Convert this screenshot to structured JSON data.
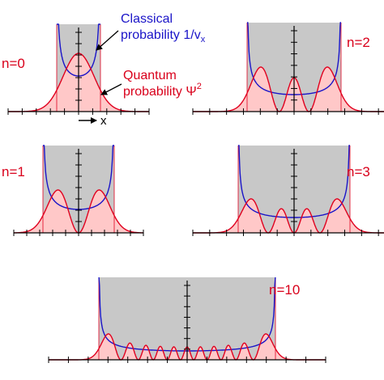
{
  "annotations": {
    "classical_line1": "Classical",
    "classical_line2": "probability 1/v",
    "classical_sub": "x",
    "quantum_line1": "Quantum",
    "quantum_line2": "probability Ψ",
    "quantum_sup": "2",
    "x_axis_label": "x"
  },
  "panels": [
    {
      "n": 0,
      "label": "n=0"
    },
    {
      "n": 2,
      "label": "n=2"
    },
    {
      "n": 1,
      "label": "n=1"
    },
    {
      "n": 3,
      "label": "n=3"
    },
    {
      "n": 10,
      "label": "n=10"
    }
  ],
  "colors": {
    "classical_region": "#c8c8c8",
    "quantum_fill": "#ffc8c8",
    "quantum_curve": "#e0001e",
    "classical_curve": "#1a14c8",
    "axis": "#000000",
    "label_red": "#d9001b"
  }
}
